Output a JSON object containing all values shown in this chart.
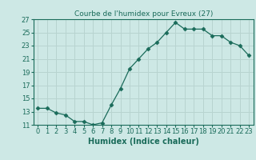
{
  "title": "Courbe de l'humidex pour Evreux (27)",
  "xlabel": "Humidex (Indice chaleur)",
  "x": [
    0,
    1,
    2,
    3,
    4,
    5,
    6,
    7,
    8,
    9,
    10,
    11,
    12,
    13,
    14,
    15,
    16,
    17,
    18,
    19,
    20,
    21,
    22,
    23
  ],
  "y": [
    13.5,
    13.5,
    12.8,
    12.5,
    11.5,
    11.5,
    11.0,
    11.3,
    14.0,
    16.5,
    19.5,
    21.0,
    22.5,
    23.5,
    25.0,
    26.5,
    25.5,
    25.5,
    25.5,
    24.5,
    24.5,
    23.5,
    23.0,
    21.5
  ],
  "ylim": [
    11,
    27
  ],
  "yticks": [
    11,
    13,
    15,
    17,
    19,
    21,
    23,
    25,
    27
  ],
  "xticks": [
    0,
    1,
    2,
    3,
    4,
    5,
    6,
    7,
    8,
    9,
    10,
    11,
    12,
    13,
    14,
    15,
    16,
    17,
    18,
    19,
    20,
    21,
    22,
    23
  ],
  "line_color": "#1a6b5a",
  "marker": "D",
  "marker_size": 2.5,
  "bg_color": "#cde8e5",
  "grid_color": "#b8d4d0",
  "tick_color": "#1a6b5a",
  "label_color": "#1a6b5a",
  "title_color": "#1a6b5a",
  "title_fontsize": 6.5,
  "label_fontsize": 7,
  "tick_fontsize": 6
}
